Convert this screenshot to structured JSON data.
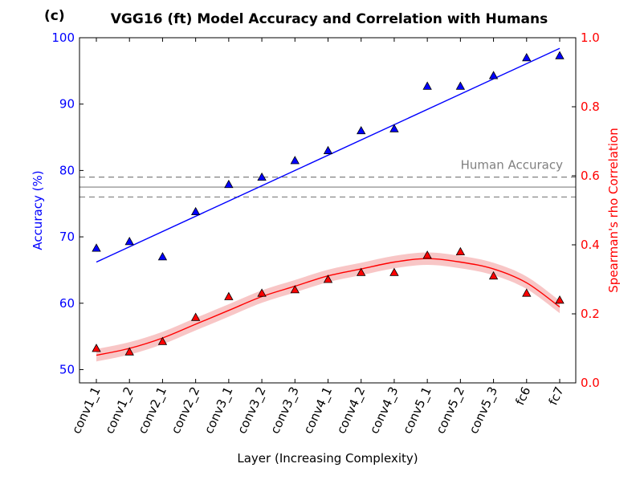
{
  "chart_data": {
    "type": "scatter",
    "panel_label": "(c)",
    "title": "VGG16 (ft) Model Accuracy and Correlation with Humans",
    "xlabel": "Layer (Increasing Complexity)",
    "ylabel_left": "Accuracy (%)",
    "ylabel_right": "Spearman's rho Correlation",
    "categories": [
      "conv1_1",
      "conv1_2",
      "conv2_1",
      "conv2_2",
      "conv3_1",
      "conv3_2",
      "conv3_3",
      "conv4_1",
      "conv4_2",
      "conv4_3",
      "conv5_1",
      "conv5_2",
      "conv5_3",
      "fc6",
      "fc7"
    ],
    "ylim_left": [
      48,
      100
    ],
    "yticks_left": [
      50,
      60,
      70,
      80,
      90,
      100
    ],
    "ylim_right": [
      0.0,
      1.0
    ],
    "yticks_right": [
      "0.0",
      "0.2",
      "0.4",
      "0.6",
      "0.8",
      "1.0"
    ],
    "series": [
      {
        "name": "Accuracy",
        "axis": "left",
        "color": "#0000ff",
        "marker": "triangle",
        "values": [
          68.3,
          69.3,
          67.0,
          73.8,
          77.9,
          79.0,
          81.5,
          83.0,
          86.0,
          86.3,
          92.7,
          92.7,
          94.3,
          97.0,
          97.3
        ],
        "fit_line": {
          "start": 66.2,
          "end": 98.4
        }
      },
      {
        "name": "Spearman's rho Correlation",
        "axis": "right",
        "color": "#ff0000",
        "band_color": "#f4a0a0",
        "marker": "triangle",
        "values": [
          0.1,
          0.09,
          0.12,
          0.19,
          0.25,
          0.26,
          0.27,
          0.3,
          0.32,
          0.32,
          0.37,
          0.38,
          0.31,
          0.26,
          0.24
        ],
        "fit_curve": [
          0.08,
          0.1,
          0.13,
          0.17,
          0.21,
          0.25,
          0.28,
          0.31,
          0.33,
          0.35,
          0.36,
          0.35,
          0.33,
          0.29,
          0.22
        ],
        "band_halfwidth": 0.018
      }
    ],
    "reference": {
      "label": "Human Accuracy",
      "axis": "left",
      "value": 77.5,
      "lower": 76.0,
      "upper": 79.0,
      "color": "#808080"
    }
  }
}
